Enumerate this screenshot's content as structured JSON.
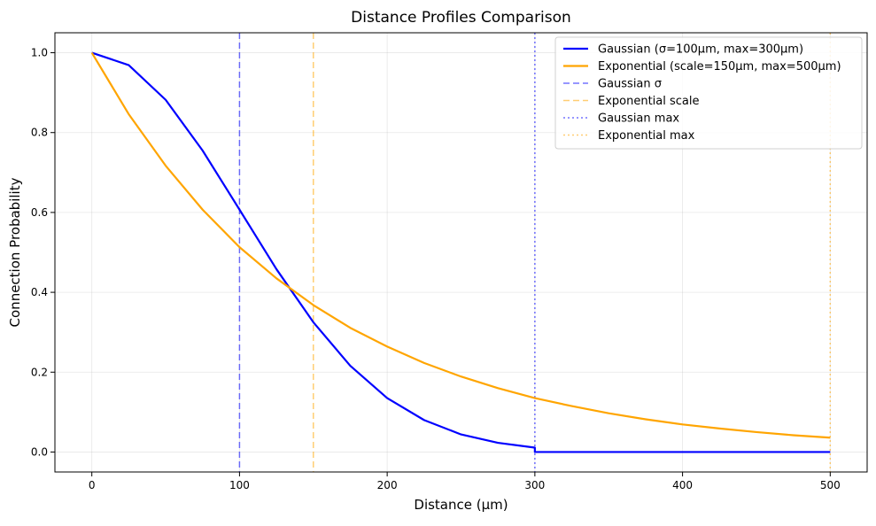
{
  "chart_data": {
    "type": "line",
    "title": "Distance Profiles Comparison",
    "xlabel": "Distance (μm)",
    "ylabel": "Connection Probability",
    "xlim": [
      -25,
      525
    ],
    "ylim": [
      -0.05,
      1.05
    ],
    "xticks": [
      0,
      100,
      200,
      300,
      400,
      500
    ],
    "xtick_labels": [
      "0",
      "100",
      "200",
      "300",
      "400",
      "500"
    ],
    "yticks": [
      0.0,
      0.2,
      0.4,
      0.6,
      0.8,
      1.0
    ],
    "ytick_labels": [
      "0.0",
      "0.2",
      "0.4",
      "0.6",
      "0.8",
      "1.0"
    ],
    "grid": true,
    "legend_position": "top-right",
    "series": [
      {
        "name": "Gaussian (σ=100μm, max=300μm)",
        "color": "#0000ff",
        "style": "solid",
        "x": [
          0,
          25,
          50,
          75,
          100,
          125,
          150,
          175,
          200,
          225,
          250,
          275,
          300,
          300,
          350,
          400,
          450,
          500
        ],
        "y": [
          1.0,
          0.969,
          0.882,
          0.755,
          0.607,
          0.458,
          0.325,
          0.216,
          0.135,
          0.08,
          0.044,
          0.023,
          0.011,
          0.0,
          0.0,
          0.0,
          0.0,
          0.0
        ]
      },
      {
        "name": "Exponential (scale=150μm, max=500μm)",
        "color": "#ffa500",
        "style": "solid",
        "x": [
          0,
          25,
          50,
          75,
          100,
          125,
          150,
          175,
          200,
          225,
          250,
          275,
          300,
          325,
          350,
          375,
          400,
          425,
          450,
          475,
          500
        ],
        "y": [
          1.0,
          0.846,
          0.717,
          0.607,
          0.513,
          0.435,
          0.368,
          0.311,
          0.264,
          0.223,
          0.189,
          0.16,
          0.135,
          0.115,
          0.097,
          0.082,
          0.069,
          0.059,
          0.05,
          0.042,
          0.036
        ]
      }
    ],
    "reference_lines": [
      {
        "name": "Gaussian σ",
        "x": 100,
        "color": "#0000ff",
        "style": "dashed"
      },
      {
        "name": "Exponential scale",
        "x": 150,
        "color": "#ffa500",
        "style": "dashed"
      },
      {
        "name": "Gaussian max",
        "x": 300,
        "color": "#0000ff",
        "style": "dotted"
      },
      {
        "name": "Exponential max",
        "x": 500,
        "color": "#ffa500",
        "style": "dotted"
      }
    ]
  }
}
